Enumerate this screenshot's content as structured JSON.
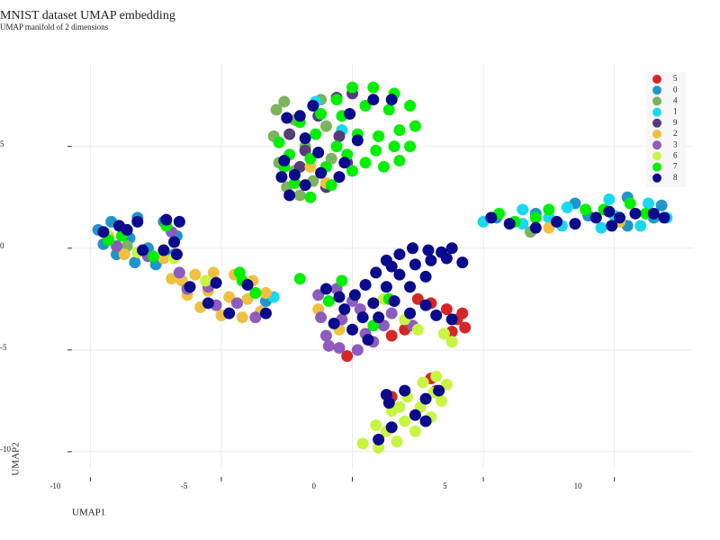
{
  "chart_data": {
    "type": "scatter",
    "title": "MNIST dataset UMAP embedding",
    "subtitle": "UMAP manifold of 2 dimensions",
    "x_label": "UMAP1",
    "y_label": "UMAP2",
    "xlim": [
      -10.7,
      13
    ],
    "ylim": [
      -10.8,
      9.1
    ],
    "xticks": [
      -10,
      -5,
      0,
      5,
      10
    ],
    "yticks": [
      -10,
      -5,
      0,
      5
    ],
    "grid": true,
    "legend_position": "top-right",
    "series": [
      {
        "name": "5",
        "color": "#d62728",
        "x": [
          4.0,
          4.3,
          3.8,
          2.5,
          3.0,
          3.6,
          2.0,
          -0.2,
          1.5,
          3.2,
          3.0,
          1.5,
          4.2
        ],
        "y": [
          -3.5,
          -3.9,
          -4.1,
          -2.5,
          -2.7,
          -3.0,
          -4.0,
          -5.3,
          -4.3,
          -7.0,
          -6.4,
          -7.3,
          -3.2
        ]
      },
      {
        "name": "0",
        "color": "#1f96c8",
        "x": [
          -9.7,
          -9.5,
          -9.0,
          -8.3,
          -7.5,
          -6.8,
          -6.7,
          -7.2,
          -8.2,
          -9.2,
          -8.5,
          -7.8,
          -3.3,
          5.5,
          7,
          9,
          10.5,
          11.5,
          11.8,
          10.5,
          8.5
        ],
        "y": [
          0.9,
          0.2,
          -0.3,
          -0.7,
          -0.8,
          -0.3,
          0.6,
          1.3,
          1.5,
          1.3,
          0.5,
          0.0,
          -2.6,
          1.5,
          1.7,
          1.6,
          1.1,
          1.5,
          2.1,
          2.5,
          2.2
        ]
      },
      {
        "name": "4",
        "color": "#7cb35f",
        "x": [
          -2.9,
          -3.0,
          -2.8,
          -2.5,
          -2.0,
          -1.5,
          -1.8,
          -2.2,
          -2.6,
          -1.2,
          -1.0,
          -0.8,
          -2.2,
          6.8,
          -8.6
        ],
        "y": [
          6.8,
          5.5,
          4.2,
          3.0,
          2.6,
          3.3,
          5.0,
          6.3,
          7.2,
          7.3,
          6.0,
          4.4,
          3.8,
          0.8,
          0.1
        ]
      },
      {
        "name": "1",
        "color": "#1ad8f0",
        "x": [
          5.0,
          6.5,
          8.0,
          9.5,
          11,
          12,
          11.3,
          9.8,
          8.2,
          6.5,
          7.5,
          10,
          -3.0,
          -1.4,
          -0.4
        ],
        "y": [
          1.3,
          1.2,
          1.1,
          1.0,
          1.1,
          1.5,
          2.2,
          2.4,
          2.0,
          1.9,
          1.5,
          1.6,
          -2.4,
          7.2,
          5.8
        ]
      },
      {
        "name": "9",
        "color": "#553c7a",
        "x": [
          -1.8,
          -1.3,
          -0.6,
          0,
          -2.4,
          -2.0,
          -0.5,
          -1.0,
          -0.2
        ],
        "y": [
          4.8,
          6.5,
          7.4,
          7.6,
          5.6,
          4.0,
          5.5,
          3.0,
          4.2
        ]
      },
      {
        "name": "2",
        "color": "#f0c040",
        "x": [
          -6.5,
          -6.0,
          -5.3,
          -4.5,
          -3.8,
          -3.3,
          -3.5,
          -4.2,
          -5.0,
          -5.8,
          -6.3,
          -5.5,
          -4.7,
          -4.0,
          -6.9,
          -8.7,
          -7.2,
          -9.3,
          -1.6,
          -1.0,
          -1.3,
          -0.5,
          7.5,
          10.2
        ],
        "y": [
          -1.6,
          -1.3,
          -1.2,
          -1.3,
          -1.6,
          -2.2,
          -3.1,
          -3.4,
          -3.3,
          -2.9,
          -2.3,
          -2.1,
          -2.4,
          -2.5,
          -1.5,
          -0.3,
          -0.5,
          0.6,
          4.0,
          3.2,
          -3.0,
          -4.0,
          1.0,
          1.3
        ]
      },
      {
        "name": "3",
        "color": "#8e5bbf",
        "x": [
          -1.3,
          -1.2,
          -1.0,
          -0.5,
          0.2,
          0.8,
          1.2,
          -0.4,
          0.3,
          -0.6,
          0.5,
          -0.9,
          1.5,
          2.3,
          0,
          -6.3,
          -5.5,
          -4.4,
          -3.7,
          -5.2,
          -6.6,
          -7.8,
          -6.9,
          -9.0
        ],
        "y": [
          -2.3,
          -3.4,
          -4.3,
          -4.9,
          -5.0,
          -4.6,
          -3.8,
          -3.5,
          -3.0,
          -2.0,
          -4.2,
          -4.8,
          -3.2,
          -3.8,
          -2.6,
          -2.0,
          -1.9,
          -2.7,
          -3.4,
          -2.8,
          -1.2,
          -0.4,
          0.8,
          0.1
        ]
      },
      {
        "name": "6",
        "color": "#c8f542",
        "x": [
          0.4,
          1.0,
          1.7,
          2.4,
          3.0,
          3.4,
          3.6,
          3.2,
          2.7,
          2.1,
          1.5,
          0.9,
          1.3,
          2.0,
          2.6,
          3.1,
          1.8,
          2.0,
          3.5,
          3.8,
          2.5,
          1.2,
          -8.2,
          -9.4,
          -6.8,
          -5.6
        ],
        "y": [
          -9.6,
          -9.8,
          -9.5,
          -9.0,
          -8.3,
          -7.5,
          -6.7,
          -6.3,
          -6.6,
          -7.3,
          -8.0,
          -8.7,
          -9.0,
          -8.5,
          -7.8,
          -7.1,
          -7.8,
          -3.5,
          -4.2,
          -4.6,
          -4.0,
          -2.5,
          -0.2,
          0.7,
          -0.5,
          -1.6
        ]
      },
      {
        "name": "7",
        "color": "#00f000",
        "x": [
          -2.8,
          -2.6,
          -2.2,
          -1.6,
          -0.8,
          0,
          0.5,
          1.2,
          1.8,
          2.2,
          2.4,
          2.2,
          1.6,
          0.8,
          0,
          -0.6,
          -1.2,
          -0.4,
          0.5,
          1.4,
          1.8,
          1.0,
          0.2,
          -0.6,
          -1.4,
          -2.0,
          0.9,
          -0.2,
          1.6,
          -2.4,
          -1.6,
          -1.0,
          -9.3,
          -7.1,
          -7.6,
          -8.8,
          -4.3,
          -4.2,
          -3.7,
          -2.0,
          -0.4,
          1.4,
          0.8,
          5.6,
          7.0,
          7.5,
          8.9,
          9.6,
          10.6,
          11.2,
          6.2,
          -0.9
        ],
        "y": [
          5.2,
          4.0,
          3.2,
          2.5,
          3.1,
          3.8,
          4.2,
          4.0,
          4.3,
          5.0,
          6.0,
          7.0,
          7.6,
          7.9,
          7.9,
          7.3,
          6.6,
          6.5,
          7.0,
          6.8,
          5.8,
          5.5,
          5.6,
          5.0,
          5.6,
          6.2,
          4.8,
          4.6,
          5.0,
          4.6,
          4.4,
          4.0,
          0.4,
          1.1,
          -0.4,
          0.6,
          -1.2,
          -1.6,
          -2.2,
          -1.5,
          -1.6,
          -2.5,
          -3.8,
          1.7,
          1.5,
          1.9,
          1.9,
          1.9,
          2.2,
          1.7,
          1.3,
          -2.6
        ]
      },
      {
        "name": "8",
        "color": "#0a0a8c",
        "x": [
          -2.5,
          -2.0,
          -1.8,
          -1.3,
          -2.6,
          -2.2,
          -2.7,
          -1.8,
          -2.4,
          -1.2,
          -0.5,
          0.2,
          -0.1,
          0.8,
          1.5,
          -0.3,
          -1.5,
          -9.5,
          -8.9,
          -8.2,
          -7.1,
          -6.6,
          -6.8,
          -7.2,
          -8.0,
          -6.7,
          -8.6,
          -6.2,
          -5.2,
          -5.5,
          -4.0,
          -3.3,
          -4.7,
          3.8,
          3.4,
          2.9,
          2.3,
          1.8,
          1.3,
          0.9,
          0.5,
          0.1,
          -0.5,
          -1.0,
          -0.3,
          0.4,
          0.0,
          0.6,
          0.8,
          1.3,
          1.8,
          2.4,
          3.0,
          3.6,
          4.2,
          1.6,
          2.2,
          2.8,
          1.0,
          2.2,
          2.8,
          3.2,
          3.8,
          -0.7,
          1.5,
          1.3,
          2.0,
          2.8,
          3.3,
          2.4,
          1.5,
          1.0,
          2.8,
          1.4,
          5.3,
          6.0,
          7.0,
          7.8,
          8.5,
          9.3,
          9.8,
          10.2,
          10.8,
          11.5,
          11.9,
          9.9
        ],
        "y": [
          6.4,
          6.5,
          5.4,
          4.7,
          4.3,
          3.6,
          3.5,
          3.1,
          2.6,
          3.7,
          3.5,
          5.3,
          6.6,
          7.3,
          7.3,
          4.2,
          7.0,
          0.8,
          1.1,
          1.3,
          1.4,
          1.3,
          0.3,
          -0.1,
          -0.1,
          -0.3,
          0.9,
          -1.9,
          -1.7,
          -2.7,
          -1.8,
          -3.2,
          -3.2,
          0,
          -0.2,
          -0.1,
          0,
          -0.3,
          -0.6,
          -1.2,
          -1.8,
          -2.3,
          -2.4,
          -2.0,
          -3.0,
          -3.4,
          -4.0,
          -4.5,
          -2.7,
          -1.9,
          -1.3,
          -0.8,
          -0.6,
          -0.5,
          -0.7,
          -2.6,
          -1.9,
          -1.4,
          -3.4,
          -3.2,
          -2.8,
          -3.3,
          -3.5,
          -3.7,
          -0.9,
          -7.2,
          -7.0,
          -7.4,
          -7.0,
          -8.2,
          -8.8,
          -9.4,
          -8.5,
          -7.6,
          1.5,
          1.2,
          1.0,
          1.3,
          1.2,
          1.5,
          1.8,
          1.5,
          1.7,
          1.7,
          1.5,
          1.1
        ]
      }
    ]
  }
}
